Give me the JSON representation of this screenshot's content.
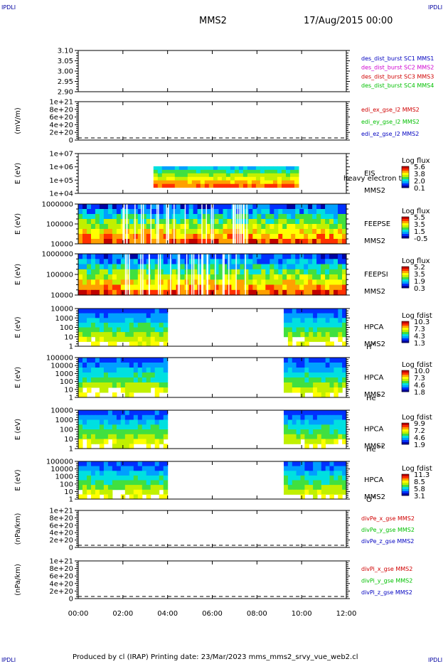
{
  "corner_labels": {
    "tl": "IPDLI",
    "tr": "IPDLI",
    "bl": "IPDLI",
    "br": "IPDLI"
  },
  "header": {
    "spacecraft": "MMS2",
    "date": "17/Aug/2015 00:00"
  },
  "footer": "Produced by cl (IRAP)   Printing date: 23/Mar/2023   mms_mms2_srvy_vue_web2.cl",
  "colors": {
    "axis": "#000000",
    "red": "#d00000",
    "green": "#00c000",
    "blue": "#0000c0",
    "magenta": "#d000d0",
    "spectrum": [
      "#0000a0",
      "#0030ff",
      "#00a0ff",
      "#00e0e0",
      "#40e040",
      "#c0f000",
      "#ffff00",
      "#ffa000",
      "#ff3000",
      "#c00000"
    ]
  },
  "chart_data": {
    "type": "multi-panel",
    "x_axis": {
      "ticks": [
        "00:00",
        "02:00",
        "04:00",
        "06:00",
        "08:00",
        "10:00",
        "12:00"
      ],
      "range": [
        "00:00",
        "12:00"
      ]
    },
    "panels": [
      {
        "id": "des",
        "kind": "line",
        "ytick_labels": [
          "3.10",
          "3.05",
          "3.00",
          "2.95",
          "2.90"
        ],
        "ytick_values": [
          3.1,
          3.05,
          3.0,
          2.95,
          2.9
        ],
        "ylim": [
          2.9,
          3.1
        ],
        "ylabel": "",
        "legend": [
          {
            "text": "des_dist_burst SC1 MMS1",
            "color": "#0000c0"
          },
          {
            "text": "des_dist_burst SC2 MMS2",
            "color": "#d000d0"
          },
          {
            "text": "des_dist_burst SC3 MMS3",
            "color": "#d00000"
          },
          {
            "text": "des_dist_burst SC4 MMS4",
            "color": "#00c000"
          }
        ]
      },
      {
        "id": "edp",
        "kind": "line",
        "ytick_labels": [
          "1e+21",
          "8e+20",
          "6e+20",
          "4e+20",
          "2e+20",
          "0"
        ],
        "ytick_values": [
          1e+21,
          8e+20,
          6e+20,
          4e+20,
          2e+20,
          0
        ],
        "ylim": [
          0,
          1e+21
        ],
        "ylabel": "(mV/m)",
        "zero_line": true,
        "legend": [
          {
            "text": "edi_ex_gse_l2 MMS2",
            "color": "#d00000"
          },
          {
            "text": "edi_ey_gse_l2 MMS2",
            "color": "#00c000"
          },
          {
            "text": "edi_ez_gse_l2 MMS2",
            "color": "#0000c0"
          }
        ]
      },
      {
        "id": "eis",
        "kind": "spectrogram",
        "ytick_labels": [
          "1e+07",
          "1e+06",
          "1e+05",
          "1e+04"
        ],
        "ylabel": "E (eV)",
        "instrument": [
          "EIS",
          "MMS2"
        ],
        "extra_text": "heavy electron tof",
        "colorbar": {
          "title": "Log flux",
          "labels": [
            "5.6",
            "3.8",
            "2.0",
            "0.1"
          ]
        },
        "coverage": [
          [
            "03:22",
            "09:52"
          ]
        ]
      },
      {
        "id": "feepse",
        "kind": "spectrogram",
        "ytick_labels": [
          "1000000",
          "100000",
          "10000"
        ],
        "ylabel": "E (eV)",
        "instrument": [
          "FEEPSE",
          "MMS2"
        ],
        "colorbar": {
          "title": "Log flux",
          "labels": [
            "5.5",
            "3.5",
            "1.5",
            "-0.5"
          ]
        },
        "coverage": [
          [
            "00:00",
            "12:00"
          ]
        ]
      },
      {
        "id": "feepsi",
        "kind": "spectrogram",
        "ytick_labels": [
          "1000000",
          "100000",
          "10000"
        ],
        "ylabel": "E (eV)",
        "instrument": [
          "FEEPSI",
          "MMS2"
        ],
        "colorbar": {
          "title": "Log flux",
          "labels": [
            "5.2",
            "3.5",
            "1.9",
            "0.3"
          ]
        },
        "coverage": [
          [
            "00:00",
            "12:00"
          ]
        ]
      },
      {
        "id": "hpca_h",
        "kind": "spectrogram",
        "ytick_labels": [
          "10000",
          "1000",
          "100",
          "10",
          "1"
        ],
        "ylabel": "E (eV)",
        "instrument": [
          "HPCA",
          "MMS2"
        ],
        "species": "H",
        "species_sup": "+",
        "colorbar": {
          "title": "Log fdist",
          "labels": [
            "10.3",
            "7.3",
            "4.3",
            "1.3"
          ]
        },
        "coverage": [
          [
            "00:00",
            "04:00"
          ],
          [
            "09:12",
            "12:00"
          ]
        ]
      },
      {
        "id": "hpca_he",
        "kind": "spectrogram",
        "ytick_labels": [
          "100000",
          "10000",
          "1000",
          "100",
          "10",
          "1"
        ],
        "ylabel": "E (eV)",
        "instrument": [
          "HPCA",
          "MMS2"
        ],
        "species": "He",
        "species_sup": "+",
        "colorbar": {
          "title": "Log fdist",
          "labels": [
            "10.0",
            "7.3",
            "4.6",
            "1.8"
          ]
        },
        "coverage": [
          [
            "00:00",
            "04:00"
          ],
          [
            "09:12",
            "12:00"
          ]
        ]
      },
      {
        "id": "hpca_he2",
        "kind": "spectrogram",
        "ytick_labels": [
          "10000",
          "1000",
          "100",
          "10",
          "1"
        ],
        "ylabel": "E (eV)",
        "instrument": [
          "HPCA",
          "MMS2"
        ],
        "species": "He",
        "species_sup": "++",
        "colorbar": {
          "title": "Log fdist",
          "labels": [
            "9.9",
            "7.2",
            "4.6",
            "1.9"
          ]
        },
        "coverage": [
          [
            "00:00",
            "04:00"
          ],
          [
            "09:12",
            "12:00"
          ]
        ]
      },
      {
        "id": "hpca_o",
        "kind": "spectrogram",
        "ytick_labels": [
          "100000",
          "10000",
          "1000",
          "100",
          "10",
          "1"
        ],
        "ylabel": "E (eV)",
        "instrument": [
          "HPCA",
          "MMS2"
        ],
        "species": "O",
        "species_sup": "+",
        "colorbar": {
          "title": "Log fdist",
          "labels": [
            "11.3",
            "8.5",
            "5.8",
            "3.1"
          ]
        },
        "coverage": [
          [
            "00:00",
            "04:00"
          ],
          [
            "09:12",
            "12:00"
          ]
        ]
      },
      {
        "id": "divpe",
        "kind": "line",
        "ytick_labels": [
          "1e+21",
          "8e+20",
          "6e+20",
          "4e+20",
          "2e+20",
          "0"
        ],
        "ytick_values": [
          1e+21,
          8e+20,
          6e+20,
          4e+20,
          2e+20,
          0
        ],
        "ylim": [
          0,
          1e+21
        ],
        "ylabel": "(nPa/km)",
        "zero_line": true,
        "legend": [
          {
            "text": "divPe_x_gse MMS2",
            "color": "#d00000"
          },
          {
            "text": "divPe_y_gse MMS2",
            "color": "#00c000"
          },
          {
            "text": "divPe_z_gse MMS2",
            "color": "#0000c0"
          }
        ]
      },
      {
        "id": "divpi",
        "kind": "line",
        "ytick_labels": [
          "1e+21",
          "8e+20",
          "6e+20",
          "4e+20",
          "2e+20",
          "0"
        ],
        "ytick_values": [
          1e+21,
          8e+20,
          6e+20,
          4e+20,
          2e+20,
          0
        ],
        "ylim": [
          0,
          1e+21
        ],
        "ylabel": "(nPa/km)",
        "zero_line": true,
        "legend": [
          {
            "text": "divPi_x_gse MMS2",
            "color": "#d00000"
          },
          {
            "text": "divPi_y_gse MMS2",
            "color": "#00c000"
          },
          {
            "text": "divPi_z_gse MMS2",
            "color": "#0000c0"
          }
        ]
      }
    ]
  }
}
